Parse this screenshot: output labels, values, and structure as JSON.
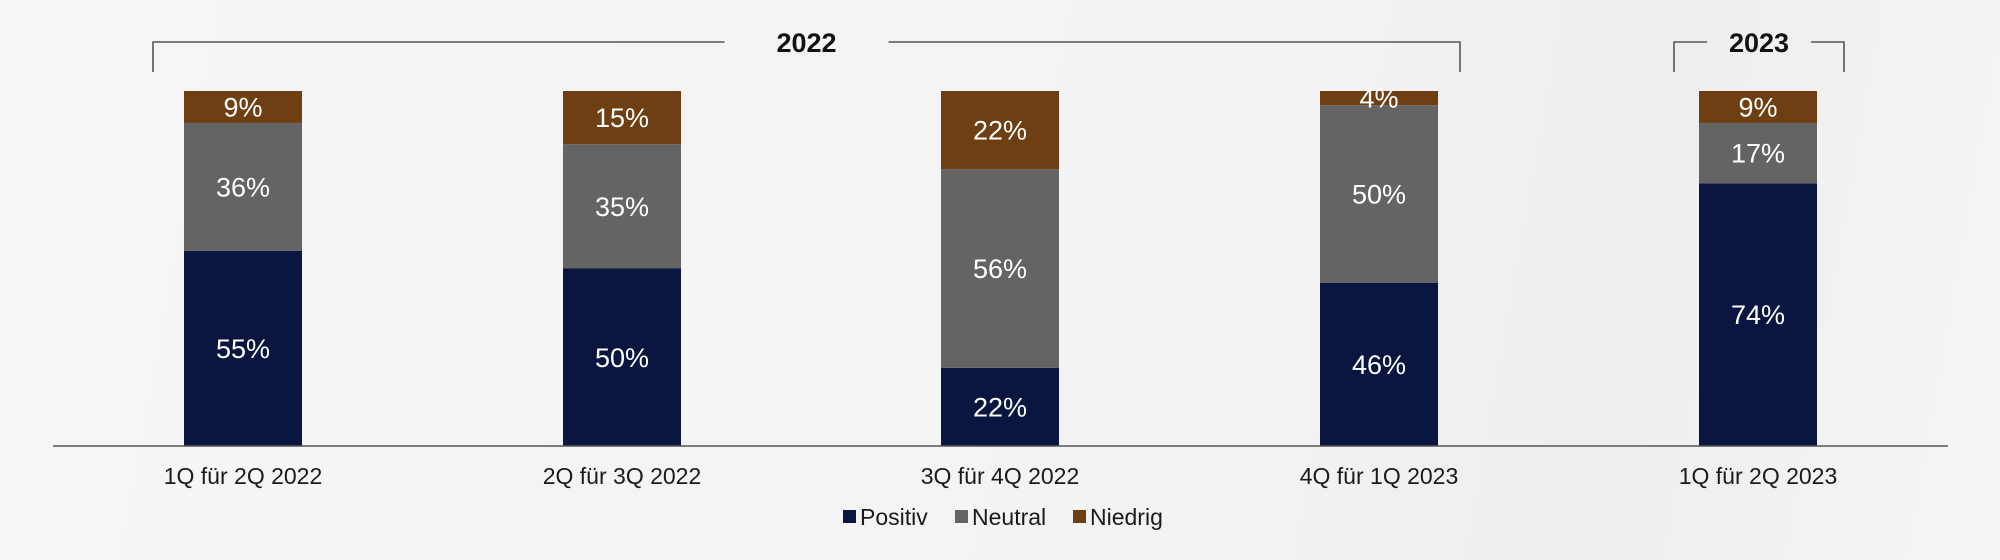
{
  "chart_data": {
    "type": "bar",
    "stacked": true,
    "categories": [
      "1Q für 2Q 2022",
      "2Q für 3Q 2022",
      "3Q für 4Q 2022",
      "4Q für 1Q 2023",
      "1Q für 2Q 2023"
    ],
    "series": [
      {
        "name": "Positiv",
        "color": "#0b1640",
        "values": [
          55,
          50,
          22,
          46,
          74
        ],
        "labels": [
          "55%",
          "50%",
          "22%",
          "46%",
          "74%"
        ]
      },
      {
        "name": "Neutral",
        "color": "#646464",
        "values": [
          36,
          35,
          56,
          50,
          17
        ],
        "labels": [
          "36%",
          "35%",
          "56%",
          "50%",
          "17%"
        ]
      },
      {
        "name": "Niedrig",
        "color": "#6e3f12",
        "values": [
          9,
          15,
          22,
          4,
          9
        ],
        "labels": [
          "9%",
          "15%",
          "22%",
          "4%",
          "9%"
        ]
      }
    ],
    "ylim": [
      0,
      100
    ],
    "grid": false,
    "legend": "bottom-center",
    "group_brackets": [
      {
        "label": "2022",
        "from": 0,
        "to": 3
      },
      {
        "label": "2023",
        "from": 4,
        "to": 4
      }
    ]
  }
}
